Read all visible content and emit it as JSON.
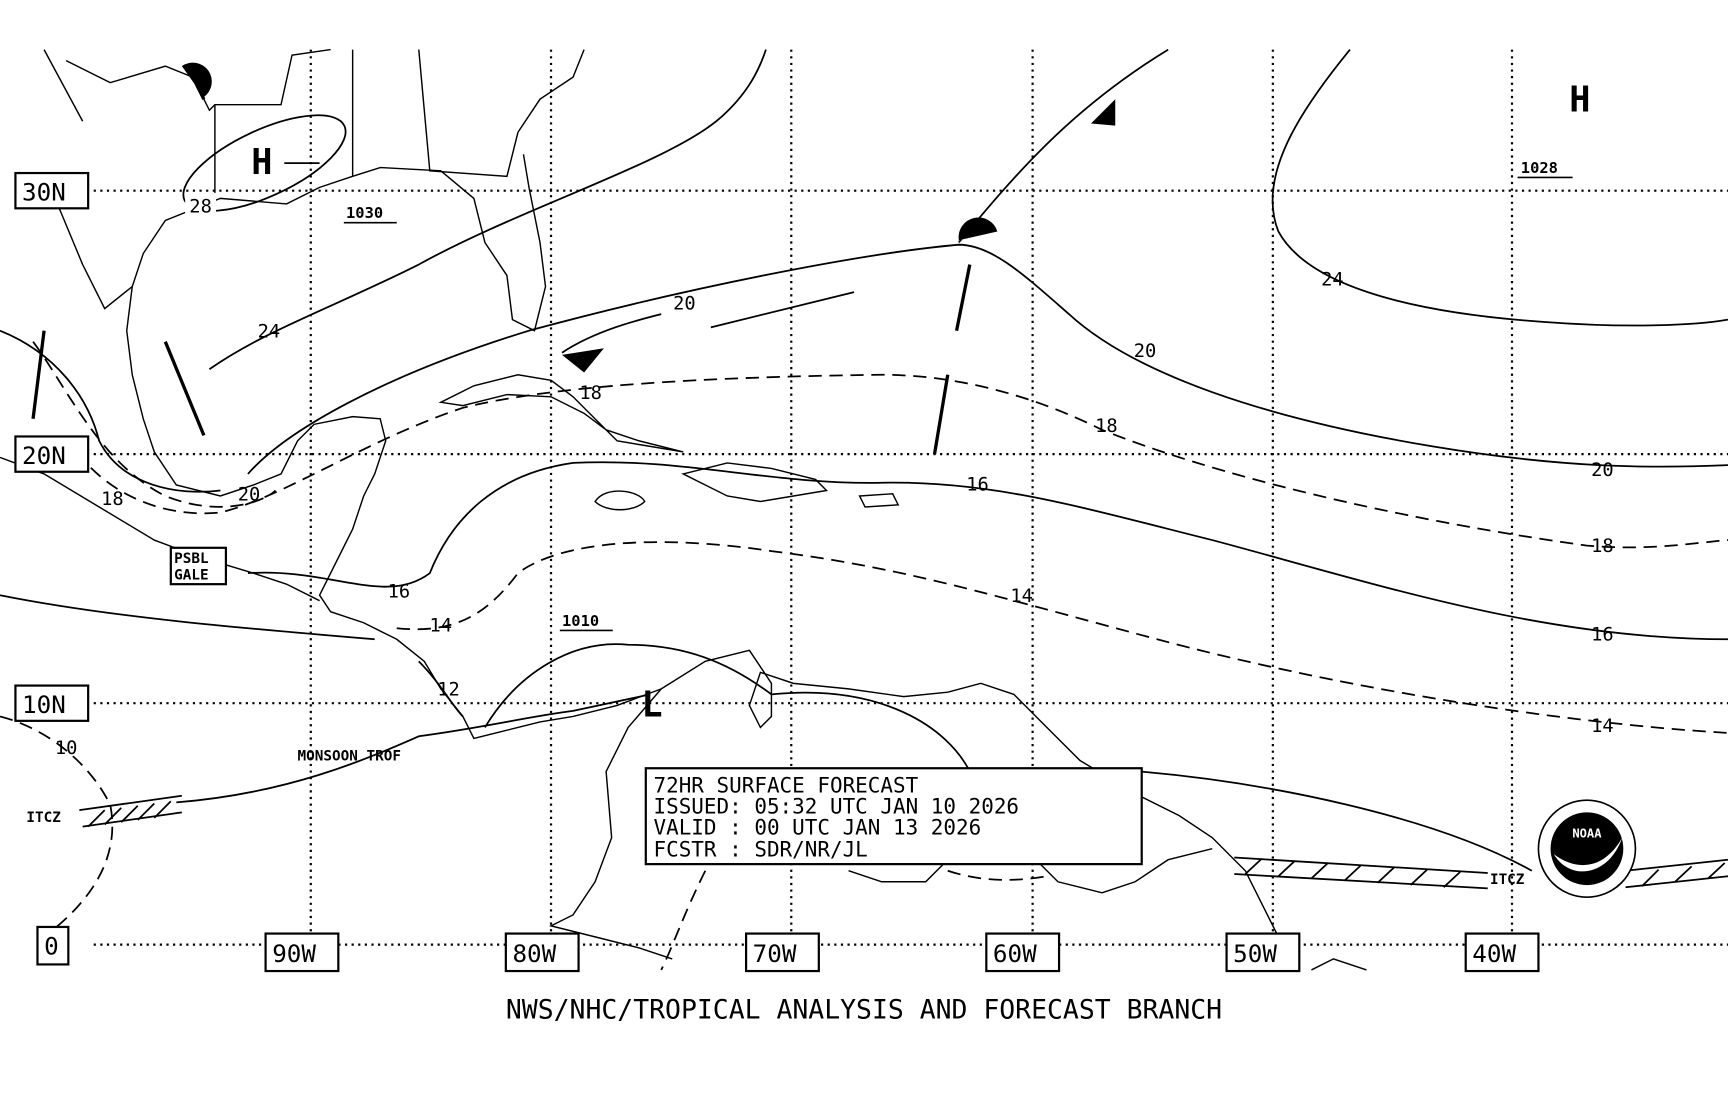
{
  "title_box": {
    "line1": "72HR SURFACE FORECAST",
    "line2": "ISSUED: 05:32 UTC JAN 10 2026",
    "line3": "VALID : 00 UTC JAN 13 2026",
    "line4": "FCSTR : SDR/NR/JL"
  },
  "footer": "NWS/NHC/TROPICAL ANALYSIS AND FORECAST BRANCH",
  "lat_labels": [
    "30N",
    "20N",
    "10N",
    "0"
  ],
  "lon_labels": [
    "90W",
    "80W",
    "70W",
    "60W",
    "50W",
    "40W"
  ],
  "pressure_centers": [
    {
      "type": "H",
      "value": "1030"
    },
    {
      "type": "H",
      "value": "1028"
    },
    {
      "type": "L",
      "value": "1010"
    }
  ],
  "isobar_labels": [
    "28",
    "24",
    "20",
    "18",
    "20",
    "18",
    "24",
    "20",
    "18",
    "20",
    "16",
    "18",
    "16",
    "14",
    "16",
    "14",
    "12",
    "10",
    "14"
  ],
  "annotations": {
    "gale": [
      "PSBL",
      "GALE"
    ],
    "monsoon": "MONSOON TROF",
    "itcz_west": "ITCZ",
    "itcz_east": "ITCZ"
  },
  "logo_text": "NOAA"
}
